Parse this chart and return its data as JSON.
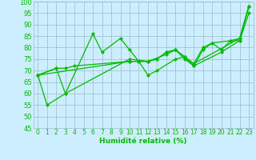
{
  "xlabel": "Humidité relative (%)",
  "bg_color": "#cceeff",
  "grid_color": "#99bbcc",
  "line_color": "#00bb00",
  "ylim": [
    45,
    100
  ],
  "xlim": [
    -0.5,
    23.5
  ],
  "yticks": [
    45,
    50,
    55,
    60,
    65,
    70,
    75,
    80,
    85,
    90,
    95,
    100
  ],
  "xticks": [
    0,
    1,
    2,
    3,
    4,
    5,
    6,
    7,
    8,
    9,
    10,
    11,
    12,
    13,
    14,
    15,
    16,
    17,
    18,
    19,
    20,
    21,
    22,
    23
  ],
  "series": [
    [
      [
        0,
        68
      ],
      [
        1,
        55
      ],
      [
        3,
        60
      ],
      [
        6,
        86
      ],
      [
        7,
        78
      ],
      [
        9,
        84
      ],
      [
        10,
        79
      ],
      [
        11,
        74
      ],
      [
        12,
        68
      ],
      [
        13,
        70
      ],
      [
        15,
        75
      ],
      [
        16,
        76
      ],
      [
        17,
        72
      ],
      [
        20,
        78
      ],
      [
        22,
        83
      ],
      [
        23,
        98
      ]
    ],
    [
      [
        0,
        68
      ],
      [
        2,
        71
      ],
      [
        3,
        71
      ],
      [
        4,
        72
      ],
      [
        10,
        74
      ],
      [
        11,
        74
      ],
      [
        12,
        74
      ],
      [
        13,
        75
      ],
      [
        14,
        78
      ],
      [
        15,
        79
      ],
      [
        16,
        75
      ],
      [
        17,
        72
      ],
      [
        18,
        79
      ],
      [
        19,
        82
      ],
      [
        21,
        83
      ],
      [
        22,
        83
      ],
      [
        23,
        95
      ]
    ],
    [
      [
        0,
        68
      ],
      [
        2,
        71
      ],
      [
        3,
        60
      ],
      [
        10,
        75
      ],
      [
        12,
        74
      ],
      [
        14,
        77
      ],
      [
        15,
        79
      ],
      [
        16,
        76
      ],
      [
        17,
        73
      ],
      [
        22,
        84
      ],
      [
        23,
        98
      ]
    ],
    [
      [
        0,
        68
      ],
      [
        10,
        74
      ],
      [
        12,
        74
      ],
      [
        13,
        75
      ],
      [
        14,
        78
      ],
      [
        15,
        79
      ],
      [
        16,
        76
      ],
      [
        17,
        73
      ],
      [
        18,
        80
      ],
      [
        19,
        82
      ],
      [
        20,
        79
      ],
      [
        21,
        83
      ],
      [
        22,
        84
      ],
      [
        23,
        98
      ]
    ]
  ]
}
